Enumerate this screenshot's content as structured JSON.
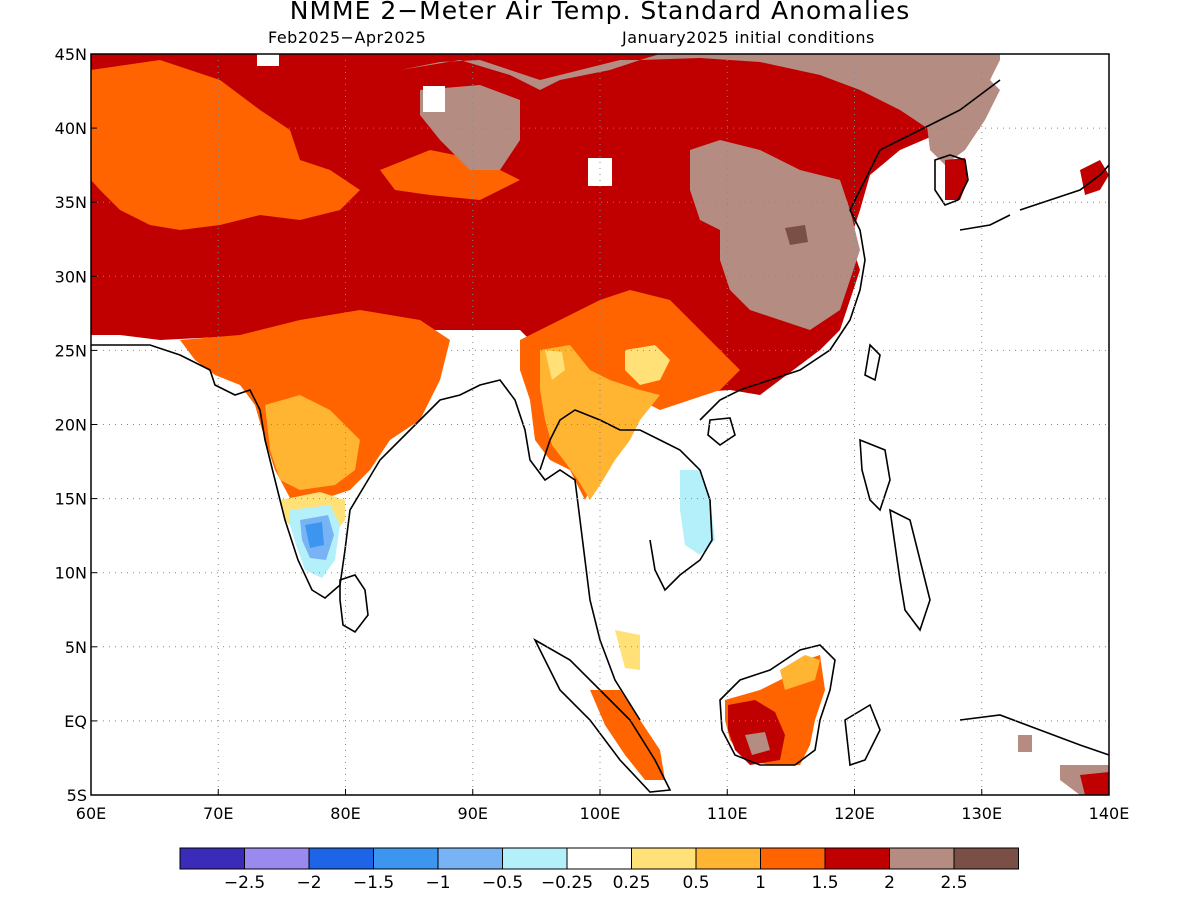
{
  "title": "NMME 2−Meter Air Temp. Standard Anomalies",
  "subtitle_left": "Feb2025−Apr2025",
  "subtitle_right": "January2025 initial conditions",
  "lon_labels": [
    "60E",
    "70E",
    "80E",
    "90E",
    "100E",
    "110E",
    "120E",
    "130E",
    "140E"
  ],
  "lat_labels": [
    "45N",
    "40N",
    "35N",
    "30N",
    "25N",
    "20N",
    "15N",
    "10N",
    "5N",
    "EQ",
    "5S"
  ],
  "legend": {
    "colors": [
      "#3a2bb8",
      "#9a8af0",
      "#1e64e6",
      "#3c96f0",
      "#78b4f5",
      "#b4f0fa",
      "#ffffff",
      "#ffe178",
      "#ffb432",
      "#ff6400",
      "#c00000",
      "#b48c82",
      "#7a5046"
    ],
    "labels": [
      "−2.5",
      "−2",
      "−1.5",
      "−1",
      "−0.5",
      "−0.25",
      "0.25",
      "0.5",
      "1",
      "1.5",
      "2",
      "2.5"
    ]
  },
  "colors": {
    "brown": "#b48c82",
    "dark_red": "#c00000",
    "orange": "#ff6400",
    "light_orange": "#ffb432",
    "yellow": "#ffe178",
    "light_cyan": "#b4f0fa",
    "light_blue": "#78b4f5",
    "blue": "#3c96f0",
    "dark_brown": "#7a5046"
  }
}
